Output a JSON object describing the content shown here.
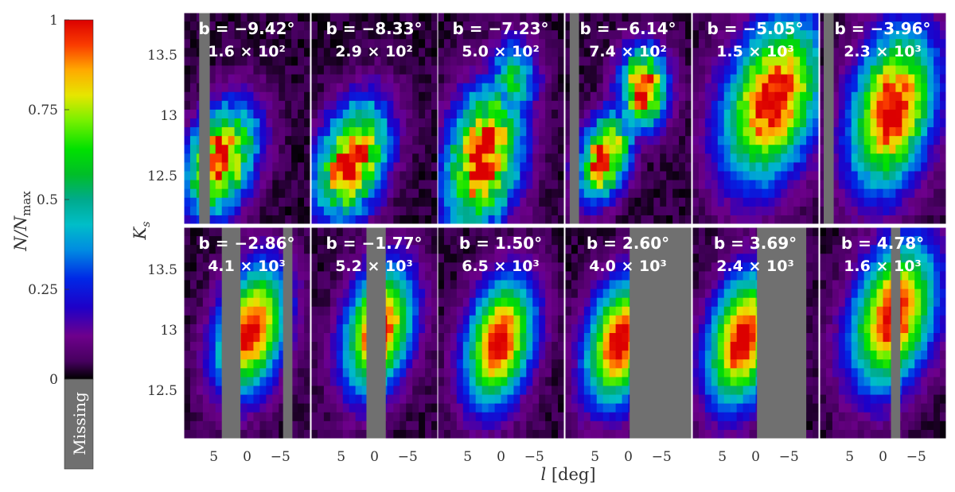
{
  "chart_data": {
    "type": "heatmap",
    "colorbar": {
      "label": "N/N_max",
      "ticks": [
        "1",
        "0.75",
        "0.5",
        "0.25",
        "0"
      ],
      "missing_label": "Missing",
      "colormap": "nipy_spectral",
      "missing_color": "#707070"
    },
    "ylabel": "K_s",
    "xlabel": "l [deg]",
    "y_ticks": [
      "13.5",
      "13",
      "12.5"
    ],
    "x_ticks": [
      "5",
      "0",
      "−5"
    ],
    "panels": [
      {
        "b": "b = −9.42°",
        "n": "1.6 × 10²",
        "peak_l": 4.0,
        "peak_k": 12.63,
        "sigma_l": 3.5,
        "sigma_k": 0.28,
        "second_peak": null,
        "missing_l": [
          [
            5.6,
            7.2
          ]
        ]
      },
      {
        "b": "b = −8.33°",
        "n": "2.9 × 10²",
        "peak_l": 3.4,
        "peak_k": 12.62,
        "sigma_l": 3.5,
        "sigma_k": 0.3,
        "second_peak": null,
        "missing_l": []
      },
      {
        "b": "b = −7.23°",
        "n": "5.0 × 10²",
        "peak_l": 2.6,
        "peak_k": 12.65,
        "sigma_l": 3.8,
        "sigma_k": 0.38,
        "second_peak": [
          -1.8,
          13.3,
          0.55
        ],
        "missing_l": []
      },
      {
        "b": "b = −6.14°",
        "n": "7.4 × 10²",
        "peak_l": 3.6,
        "peak_k": 12.66,
        "sigma_l": 2.6,
        "sigma_k": 0.22,
        "second_peak": [
          -2.3,
          13.22,
          0.98
        ],
        "missing_l": [
          [
            7.4,
            8.8
          ]
        ]
      },
      {
        "b": "b = −5.05°",
        "n": "1.5 × 10³",
        "peak_l": -2.6,
        "peak_k": 13.13,
        "sigma_l": 5.0,
        "sigma_k": 0.42,
        "second_peak": null,
        "missing_l": []
      },
      {
        "b": "b = −3.96°",
        "n": "2.3 × 10³",
        "peak_l": -1.4,
        "peak_k": 13.05,
        "sigma_l": 4.2,
        "sigma_k": 0.42,
        "second_peak": null,
        "missing_l": [
          [
            7.4,
            8.9
          ]
        ]
      },
      {
        "b": "b = −2.86°",
        "n": "4.1 × 10³",
        "peak_l": -0.6,
        "peak_k": 13.0,
        "sigma_l": 3.5,
        "sigma_k": 0.33,
        "second_peak": null,
        "missing_l": [
          [
            1.0,
            3.8
          ],
          [
            -5.4,
            -6.8
          ]
        ]
      },
      {
        "b": "b = −1.77°",
        "n": "5.2 × 10³",
        "peak_l": -0.6,
        "peak_k": 13.0,
        "sigma_l": 3.4,
        "sigma_k": 0.33,
        "second_peak": null,
        "missing_l": [
          [
            1.2,
            -1.7
          ]
        ]
      },
      {
        "b": "b = 1.50°",
        "n": "6.5 × 10³",
        "peak_l": 0.2,
        "peak_k": 12.9,
        "sigma_l": 3.4,
        "sigma_k": 0.33,
        "second_peak": null,
        "missing_l": []
      },
      {
        "b": "b = 2.60°",
        "n": "4.0 × 10³",
        "peak_l": 1.2,
        "peak_k": 12.9,
        "sigma_l": 3.5,
        "sigma_k": 0.33,
        "second_peak": null,
        "missing_l": [
          [
            -0.2,
            -9.5
          ]
        ]
      },
      {
        "b": "b = 3.69°",
        "n": "2.4 × 10³",
        "peak_l": 1.9,
        "peak_k": 12.92,
        "sigma_l": 3.6,
        "sigma_k": 0.35,
        "second_peak": null,
        "missing_l": [
          [
            -0.2,
            -7.6
          ]
        ]
      },
      {
        "b": "b = 4.78°",
        "n": "1.6 × 10³",
        "peak_l": -1.6,
        "peak_k": 13.12,
        "sigma_l": 4.2,
        "sigma_k": 0.38,
        "second_peak": null,
        "missing_l": [
          [
            -1.2,
            -2.6
          ]
        ]
      }
    ]
  }
}
